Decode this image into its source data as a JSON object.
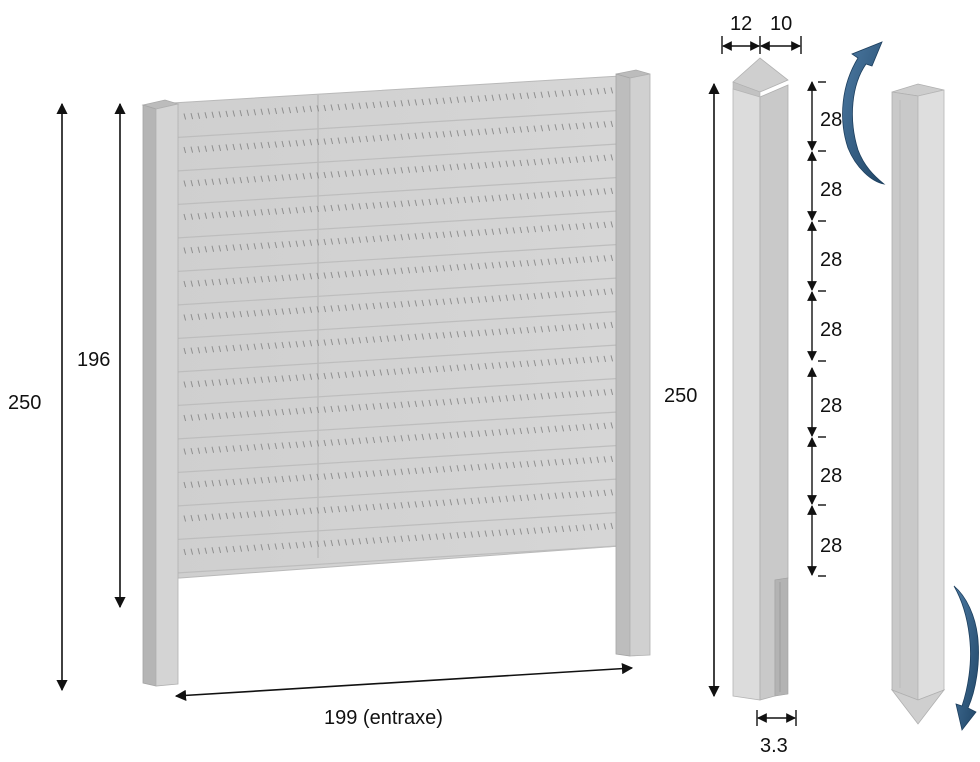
{
  "colors": {
    "panel_light": "#d3d3d3",
    "panel_mid": "#c7c7c7",
    "panel_dark": "#a9a9a9",
    "post_face": "#dcdcdc",
    "post_side": "#bdbdbd",
    "slot": "#8c8c8c",
    "dimension_line": "#111111",
    "arrow_blue": "#2f5b82"
  },
  "labels": {
    "panel_height_total": "250",
    "panel_height_infill": "196",
    "panel_width": "199 (entraxe)",
    "post_width_a": "12",
    "post_width_b": "10",
    "post_height": "250",
    "slot_depth": "3.3",
    "slot_spacing": [
      "28",
      "28",
      "28",
      "28",
      "28",
      "28",
      "28"
    ]
  },
  "icons": {
    "rotation_top": "curved-arrow-icon",
    "rotation_bottom": "curved-arrow-icon"
  }
}
